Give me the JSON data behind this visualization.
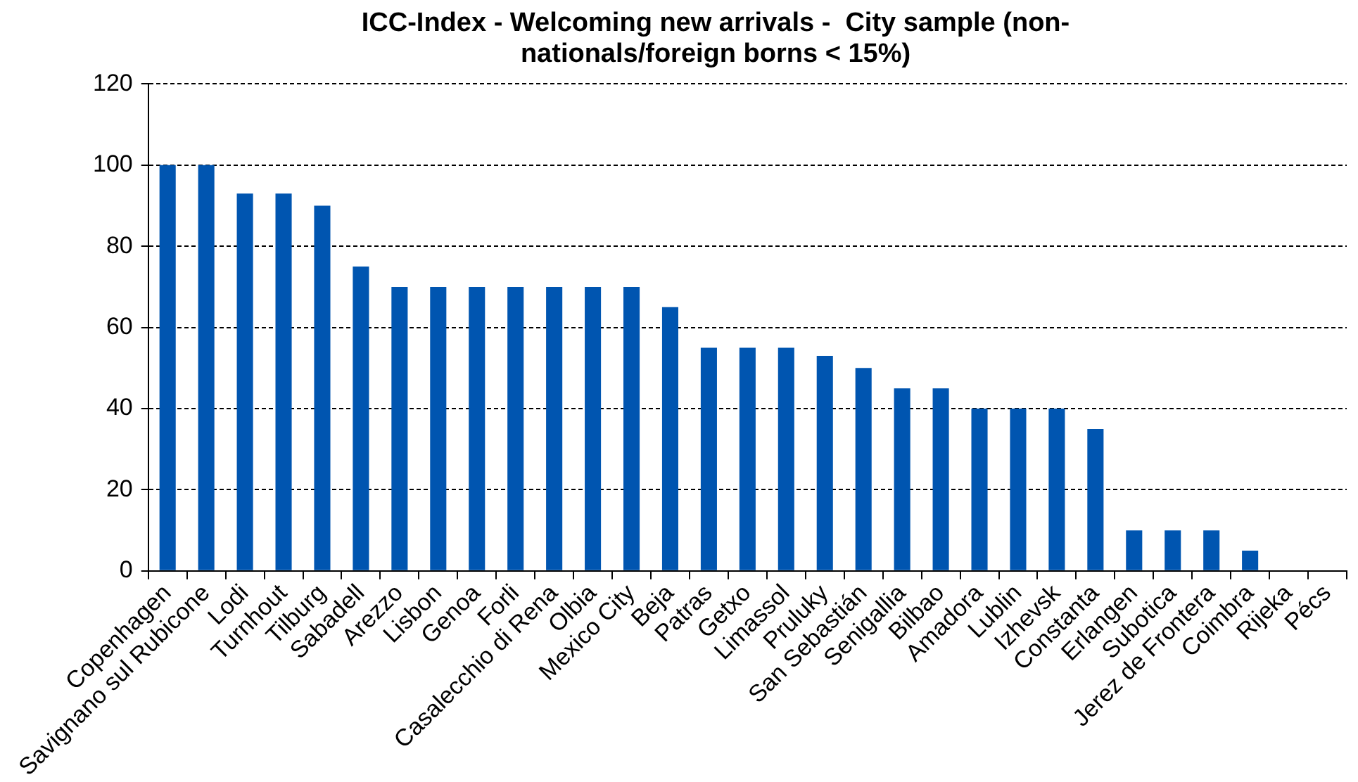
{
  "chart_data": {
    "type": "bar",
    "title": [
      "ICC-Index - Welcoming new arrivals -  City sample (non-",
      "nationals/foreign borns < 15%)"
    ],
    "categories": [
      "Copenhagen",
      "Savignano sul Rubicone",
      "Lodi",
      "Turnhout",
      "Tilburg",
      "Sabadell",
      "Arezzo",
      "Lisbon",
      "Genoa",
      "Forli",
      "Casalecchio di Rena",
      "Olbia",
      "Mexico City",
      "Beja",
      "Patras",
      "Getxo",
      "Limassol",
      "Pruluky",
      "San Sebastián",
      "Senigallia",
      "Bilbao",
      "Amadora",
      "Lublin",
      "Izhevsk",
      "Constanta",
      "Erlangen",
      "Subotica",
      "Jerez de Frontera",
      "Coimbra",
      "Rijeka",
      "Pécs"
    ],
    "values": [
      100,
      100,
      93,
      93,
      90,
      75,
      70,
      70,
      70,
      70,
      70,
      70,
      70,
      65,
      55,
      55,
      55,
      53,
      50,
      45,
      45,
      40,
      40,
      40,
      35,
      10,
      10,
      10,
      5,
      0,
      0
    ],
    "color": "#0055b0",
    "ylim": [
      0,
      120
    ],
    "yticks": [
      0,
      20,
      40,
      60,
      80,
      100,
      120
    ],
    "grid": "y",
    "legend": false
  }
}
